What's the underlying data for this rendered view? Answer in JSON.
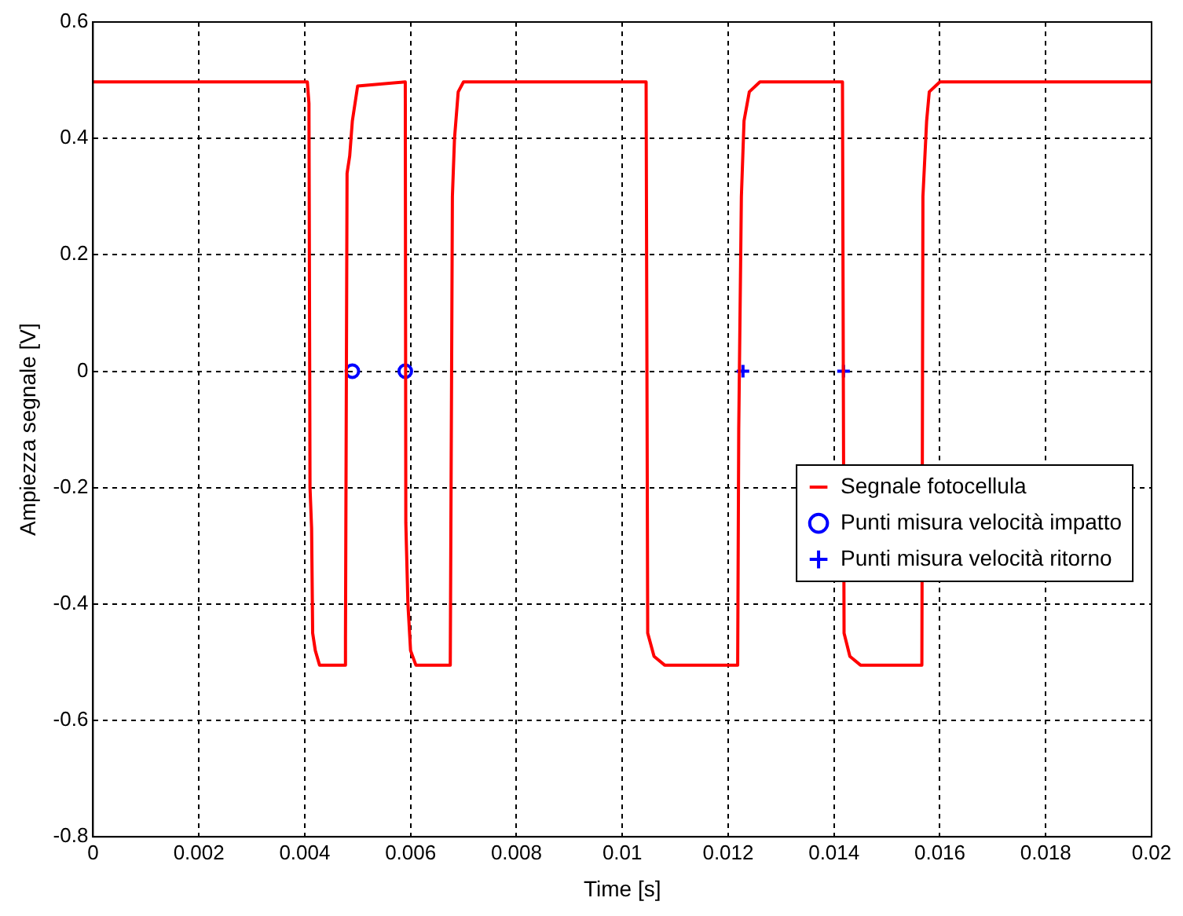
{
  "chart_data": {
    "type": "line",
    "xlabel": "Time [s]",
    "ylabel": "Ampiezza segnale [V]",
    "xlim": [
      0,
      0.02
    ],
    "xticks": [
      0,
      0.002,
      0.004,
      0.006,
      0.008,
      0.01,
      0.012,
      0.014,
      0.016,
      0.018,
      0.02
    ],
    "ylim": [
      -0.8,
      0.6
    ],
    "yticks": [
      -0.8,
      -0.6,
      -0.4,
      -0.2,
      0,
      0.2,
      0.4,
      0.6
    ],
    "grid": true,
    "legend": "right",
    "series": [
      {
        "name": "Segnale fotocellula",
        "type": "line",
        "color": "#ff0000",
        "marker": "none",
        "line_style": "solid",
        "x": [
          0,
          0.00405,
          0.00408,
          0.0041,
          0.00413,
          0.00415,
          0.0042,
          0.00428,
          0.00475,
          0.00477,
          0.0048,
          0.00485,
          0.0049,
          0.005,
          0.0059,
          0.00591,
          0.00595,
          0.006,
          0.0061,
          0.00675,
          0.00679,
          0.00683,
          0.0069,
          0.007,
          0.01045,
          0.01048,
          0.0106,
          0.0108,
          0.01218,
          0.0122,
          0.01225,
          0.0123,
          0.0124,
          0.0126,
          0.01416,
          0.01419,
          0.0143,
          0.0145,
          0.01566,
          0.01568,
          0.01575,
          0.0158,
          0.016,
          0.02
        ],
        "values": [
          0.497,
          0.497,
          0.46,
          -0.2,
          -0.27,
          -0.45,
          -0.48,
          -0.505,
          -0.505,
          -0.46,
          0.34,
          0.37,
          0.43,
          0.49,
          0.497,
          -0.26,
          -0.4,
          -0.48,
          -0.505,
          -0.505,
          0.3,
          0.4,
          0.48,
          0.497,
          0.497,
          -0.45,
          -0.49,
          -0.505,
          -0.505,
          -0.1,
          0.3,
          0.43,
          0.48,
          0.497,
          0.497,
          -0.45,
          -0.49,
          -0.505,
          -0.505,
          0.3,
          0.43,
          0.48,
          0.497,
          0.497
        ]
      },
      {
        "name": "Punti misura velocità impatto",
        "type": "scatter",
        "color": "#0000ff",
        "marker": "circle",
        "x": [
          0.0049,
          0.0059
        ],
        "values": [
          0,
          0
        ]
      },
      {
        "name": "Punti misura velocità ritorno",
        "type": "scatter",
        "color": "#0000ff",
        "marker": "cross",
        "x": [
          0.01228,
          0.01418
        ],
        "values": [
          0,
          0
        ]
      }
    ]
  }
}
